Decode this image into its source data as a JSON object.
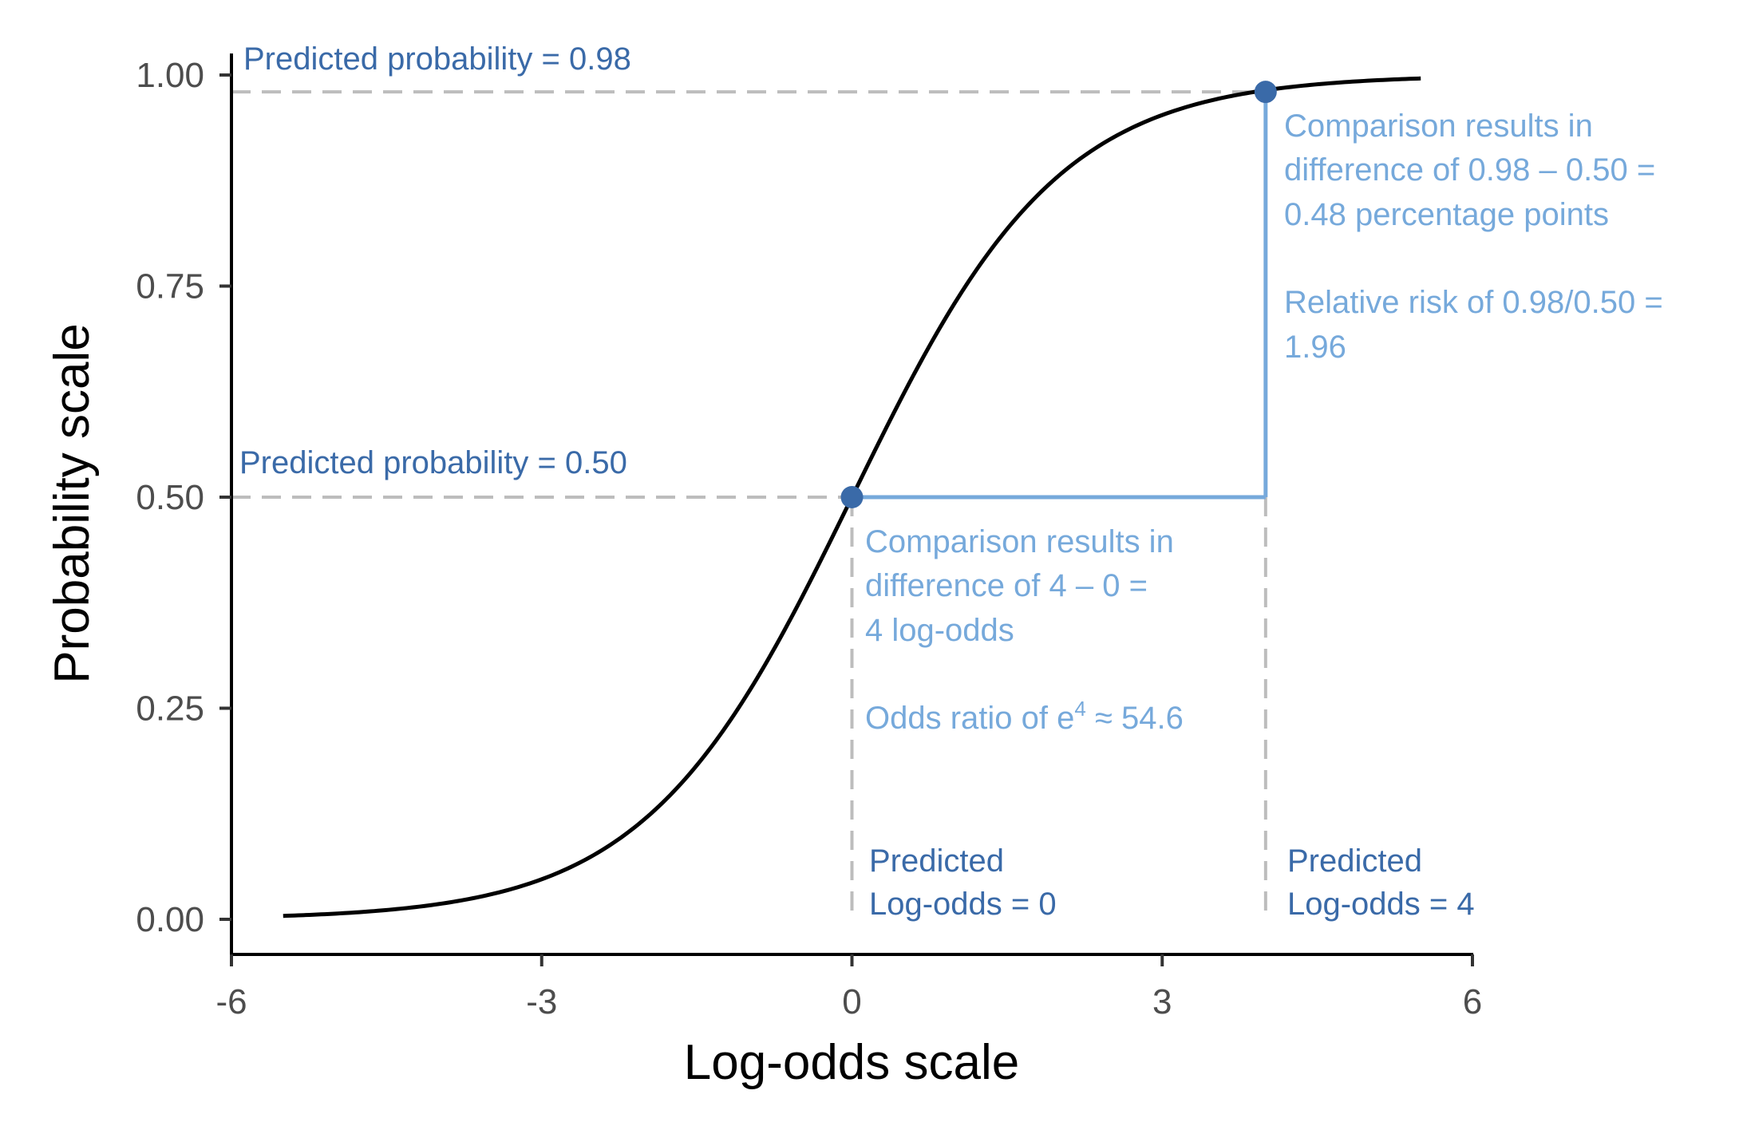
{
  "chart_data": {
    "type": "line",
    "title": "",
    "xlabel": "Log-odds scale",
    "ylabel": "Probability scale",
    "xlim": [
      -6,
      6
    ],
    "ylim": [
      0,
      1
    ],
    "x_ticks": [
      -6,
      -3,
      0,
      3,
      6
    ],
    "x_tick_labels": [
      "-6",
      "-3",
      "0",
      "3",
      "6"
    ],
    "y_ticks": [
      0,
      0.25,
      0.5,
      0.75,
      1.0
    ],
    "y_tick_labels": [
      "0.00",
      "0.25",
      "0.50",
      "0.75",
      "1.00"
    ],
    "grid": false,
    "legend": "none",
    "series": [
      {
        "curve": "logistic",
        "x_range": [
          -5.5,
          5.5
        ],
        "color": "#000000"
      }
    ],
    "points": [
      {
        "x": 0,
        "y": 0.5,
        "color": "#3a6aa8"
      },
      {
        "x": 4,
        "y": 0.98,
        "color": "#3a6aa8"
      }
    ],
    "guides": {
      "color": "#bdbdbd",
      "comparison_color": "#76a9db"
    },
    "annotations": {
      "prob_high": "Predicted probability = 0.98",
      "prob_mid": "Predicted probability = 0.50",
      "prob_comparison": [
        "Comparison results in",
        "difference of 0.98 – 0.50 =",
        "0.48 percentage points"
      ],
      "relative_risk": [
        "Relative risk of 0.98/0.50 =",
        "1.96"
      ],
      "logodds_comparison": [
        "Comparison results in",
        "difference of 4 – 0 =",
        "4 log-odds"
      ],
      "odds_ratio_prefix": "Odds ratio of e",
      "odds_ratio_exponent": "4",
      "odds_ratio_suffix": " ≈ 54.6",
      "pred_logodds_0": [
        "Predicted",
        "Log-odds = 0"
      ],
      "pred_logodds_4": [
        "Predicted",
        "Log-odds = 4"
      ]
    }
  }
}
